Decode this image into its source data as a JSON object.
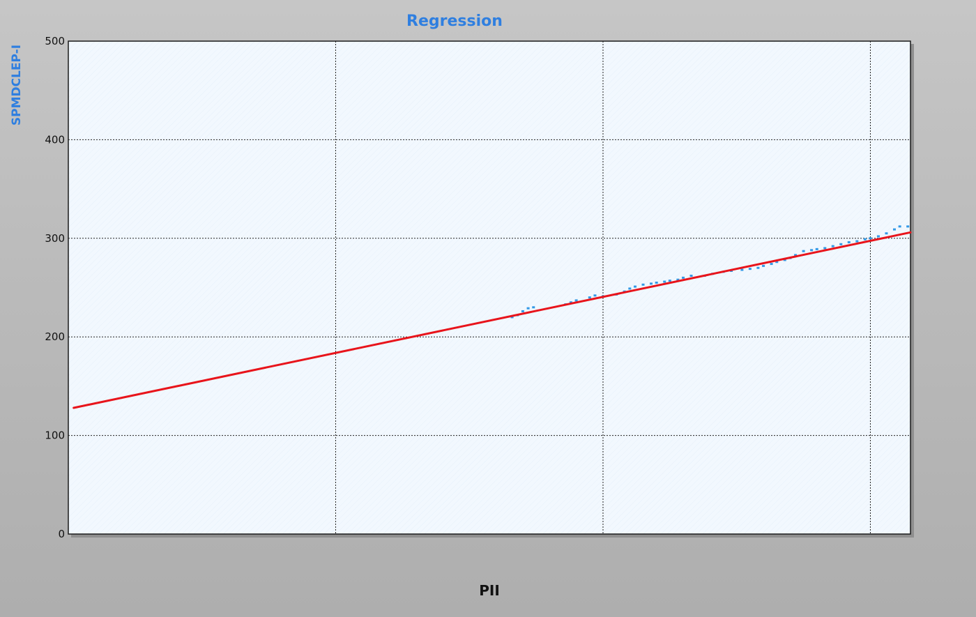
{
  "chart_data": {
    "type": "scatter",
    "title": "Regression",
    "xlabel": "PII",
    "ylabel": "SPMDCLEP-I",
    "xlim": [
      0,
      3.15
    ],
    "ylim": [
      0,
      500
    ],
    "yticks": [
      "0",
      "100",
      "200",
      "300",
      "400",
      "500"
    ],
    "x_gridlines": [
      1,
      2,
      3
    ],
    "grid": true,
    "legend": "none",
    "colors": {
      "points": "#3399e6",
      "fit_line": "#e8141b",
      "plot_background": "#f1f8fe",
      "page_background": "#bdbdbd",
      "title": "#2f7fe0",
      "ylabel": "#2f7fe0"
    },
    "series": [
      {
        "type": "scatter",
        "points": [
          [
            1.66,
            220
          ],
          [
            1.68,
            222
          ],
          [
            1.7,
            226
          ],
          [
            1.72,
            229
          ],
          [
            1.74,
            230
          ],
          [
            1.86,
            233
          ],
          [
            1.88,
            235
          ],
          [
            1.9,
            237
          ],
          [
            1.95,
            240
          ],
          [
            1.97,
            242
          ],
          [
            2.0,
            241
          ],
          [
            2.05,
            243
          ],
          [
            2.08,
            246
          ],
          [
            2.1,
            249
          ],
          [
            2.12,
            251
          ],
          [
            2.15,
            253
          ],
          [
            2.18,
            254
          ],
          [
            2.2,
            255
          ],
          [
            2.23,
            256
          ],
          [
            2.25,
            257
          ],
          [
            2.28,
            258
          ],
          [
            2.3,
            260
          ],
          [
            2.33,
            262
          ],
          [
            2.38,
            262
          ],
          [
            2.41,
            264
          ],
          [
            2.45,
            266
          ],
          [
            2.48,
            267
          ],
          [
            2.52,
            268
          ],
          [
            2.55,
            269
          ],
          [
            2.58,
            270
          ],
          [
            2.6,
            272
          ],
          [
            2.63,
            274
          ],
          [
            2.65,
            276
          ],
          [
            2.68,
            278
          ],
          [
            2.7,
            280
          ],
          [
            2.72,
            283
          ],
          [
            2.75,
            287
          ],
          [
            2.78,
            288
          ],
          [
            2.8,
            289
          ],
          [
            2.83,
            290
          ],
          [
            2.86,
            292
          ],
          [
            2.89,
            294
          ],
          [
            2.92,
            296
          ],
          [
            2.95,
            297
          ],
          [
            2.98,
            299
          ],
          [
            3.0,
            300
          ],
          [
            3.03,
            302
          ],
          [
            3.06,
            305
          ],
          [
            3.09,
            309
          ],
          [
            3.11,
            312
          ],
          [
            3.14,
            312
          ]
        ]
      },
      {
        "type": "line",
        "points": [
          [
            0.02,
            128
          ],
          [
            3.15,
            306
          ]
        ]
      }
    ]
  }
}
